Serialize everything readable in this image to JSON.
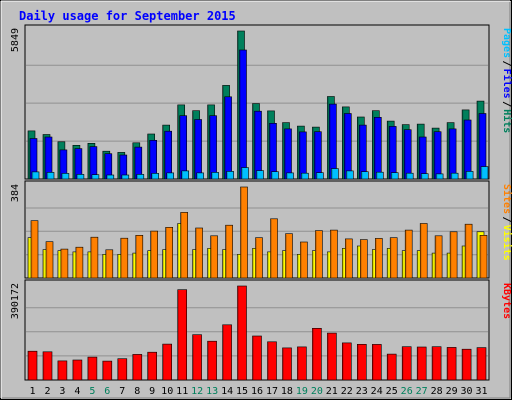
{
  "chart_data": {
    "type": "bar",
    "title": "Daily usage for September 2015",
    "days": [
      "1",
      "2",
      "3",
      "4",
      "5",
      "6",
      "7",
      "8",
      "9",
      "10",
      "11",
      "12",
      "13",
      "14",
      "15",
      "16",
      "17",
      "18",
      "19",
      "20",
      "21",
      "22",
      "23",
      "24",
      "25",
      "26",
      "27",
      "28",
      "29",
      "30",
      "31"
    ],
    "weekend_days": [
      "5",
      "6",
      "12",
      "13",
      "19",
      "20",
      "26",
      "27"
    ],
    "panels": [
      {
        "id": "pages-files-hits",
        "ymax_label": "5849",
        "ymax": 5849,
        "series": [
          {
            "name": "Hits",
            "color": "#00805c",
            "values": [
              1900,
              1760,
              1470,
              1330,
              1410,
              1100,
              1050,
              1430,
              1780,
              2130,
              2930,
              2700,
              2930,
              3700,
              5849,
              2980,
              2690,
              2230,
              2090,
              2050,
              3260,
              2850,
              2450,
              2700,
              2290,
              2150,
              2170,
              2010,
              2230,
              2730,
              3080
            ]
          },
          {
            "name": "Files",
            "color": "#0000ff",
            "values": [
              1600,
              1660,
              1150,
              1200,
              1280,
              1000,
              950,
              1260,
              1530,
              1890,
              2500,
              2350,
              2500,
              3250,
              5100,
              2680,
              2200,
              1980,
              1860,
              1870,
              2960,
              2590,
              2130,
              2440,
              2080,
              1950,
              1660,
              1870,
              1980,
              2330,
              2590
            ]
          },
          {
            "name": "Pages",
            "color": "#00c0ff",
            "values": [
              280,
              260,
              220,
              180,
              170,
              160,
              160,
              180,
              220,
              240,
              320,
              240,
              260,
              300,
              450,
              330,
              290,
              240,
              230,
              250,
              410,
              320,
              290,
              270,
              250,
              230,
              210,
              200,
              230,
              300,
              490
            ]
          }
        ],
        "vertical_labels": [
          "Pages",
          "/",
          "Files",
          "/",
          "Hits"
        ]
      },
      {
        "id": "sites-visits",
        "ymax_label": "384",
        "ymax": 384,
        "series": [
          {
            "name": "Visits",
            "color": "#ffff00",
            "values": [
              170,
              120,
              115,
              110,
              110,
              100,
              100,
              105,
              115,
              120,
              230,
              120,
              125,
              120,
              100,
              125,
              110,
              115,
              100,
              115,
              110,
              125,
              135,
              120,
              125,
              115,
              115,
              105,
              105,
              135,
              195
            ]
          },
          {
            "name": "Sites",
            "color": "#ff8000",
            "values": [
              242,
              153,
              122,
              130,
              172,
              119,
              168,
              180,
              198,
              214,
              277,
              211,
              178,
              223,
              384,
              170,
              250,
              187,
              152,
              200,
              202,
              165,
              162,
              167,
              170,
              202,
              230,
              178,
              195,
              227,
              180
            ]
          }
        ],
        "vertical_labels": [
          "Sites",
          "/",
          "Visits"
        ]
      },
      {
        "id": "kbytes",
        "ymax_label": "390172",
        "ymax": 390172,
        "series": [
          {
            "name": "KBytes",
            "color": "#ff0000",
            "values": [
              119400,
              117000,
              79200,
              83100,
              94900,
              78300,
              88500,
              106100,
              115500,
              149200,
              374800,
              188200,
              161100,
              229300,
              390172,
              182800,
              158700,
              133200,
              137500,
              214800,
              194800,
              154200,
              148000,
              147900,
              107700,
              138200,
              136800,
              138300,
              135500,
              128000,
              134500
            ]
          }
        ],
        "vertical_labels": [
          "KBytes"
        ]
      }
    ]
  }
}
